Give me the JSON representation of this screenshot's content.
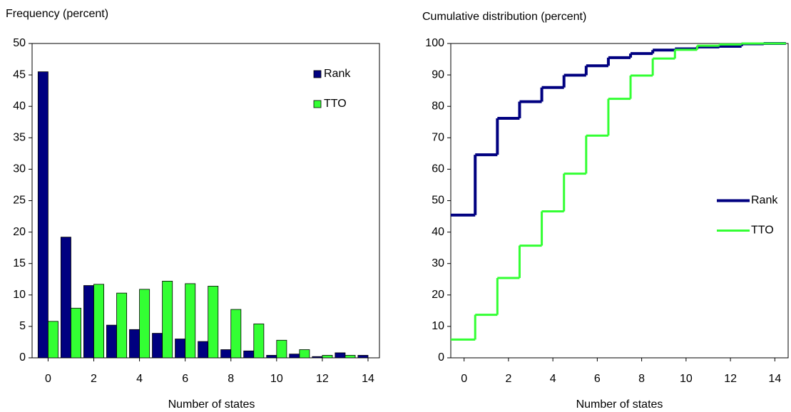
{
  "chart_data": [
    {
      "type": "bar",
      "y_label": "Frequency (percent)",
      "x_label": "Number of states",
      "x": [
        0,
        1,
        2,
        3,
        4,
        5,
        6,
        7,
        8,
        9,
        10,
        11,
        12,
        13,
        14
      ],
      "xlim": [
        -0.7,
        14.5
      ],
      "xticks": [
        0,
        2,
        4,
        6,
        8,
        10,
        12,
        14
      ],
      "ylim": [
        0,
        50
      ],
      "yticks": [
        0,
        5,
        10,
        15,
        20,
        25,
        30,
        35,
        40,
        45,
        50
      ],
      "legend": "upper right",
      "series": [
        {
          "name": "Rank",
          "color": "#000080",
          "values": [
            45.5,
            19.2,
            11.5,
            5.2,
            4.5,
            3.9,
            3.0,
            2.6,
            1.3,
            1.1,
            0.4,
            0.6,
            0.2,
            0.8,
            0.4
          ]
        },
        {
          "name": "TTO",
          "color": "#33ff33",
          "values": [
            5.8,
            7.9,
            11.7,
            10.3,
            10.9,
            12.2,
            11.8,
            11.4,
            7.7,
            5.4,
            2.8,
            1.3,
            0.4,
            0.4,
            0
          ]
        }
      ]
    },
    {
      "type": "step",
      "y_label": "Cumulative distribution (percent)",
      "x_label": "Number of states",
      "x": [
        0,
        1,
        2,
        3,
        4,
        5,
        6,
        7,
        8,
        9,
        10,
        11,
        12,
        13,
        14
      ],
      "xlim": [
        -0.6,
        14.6
      ],
      "xticks": [
        0,
        2,
        4,
        6,
        8,
        10,
        12,
        14
      ],
      "ylim": [
        0,
        100
      ],
      "yticks": [
        0,
        10,
        20,
        30,
        40,
        50,
        60,
        70,
        80,
        90,
        100
      ],
      "legend": "center right",
      "series": [
        {
          "name": "Rank",
          "color": "#000080",
          "values": [
            45.4,
            64.6,
            76.2,
            81.5,
            86.0,
            89.9,
            92.9,
            95.5,
            96.8,
            97.9,
            98.3,
            98.9,
            99.1,
            99.9,
            100
          ]
        },
        {
          "name": "TTO",
          "color": "#33ff33",
          "values": [
            5.8,
            13.7,
            25.4,
            35.7,
            46.6,
            58.6,
            70.7,
            82.4,
            89.8,
            95.2,
            98.0,
            99.3,
            99.7,
            100,
            100
          ]
        }
      ]
    }
  ]
}
